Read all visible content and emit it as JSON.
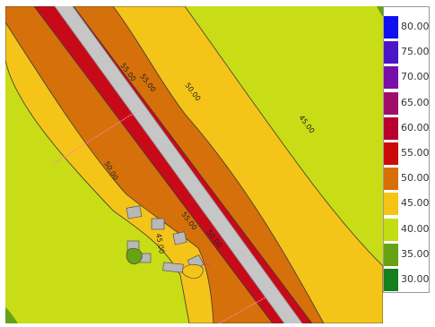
{
  "legend": {
    "entries": [
      {
        "label": "80.00",
        "color": "#1010f0"
      },
      {
        "label": "75.00",
        "color": "#4a16c8"
      },
      {
        "label": "70.00",
        "color": "#7a0ea8"
      },
      {
        "label": "65.00",
        "color": "#a00e6c"
      },
      {
        "label": "60.00",
        "color": "#b8002e"
      },
      {
        "label": "55.00",
        "color": "#cc0a0a"
      },
      {
        "label": "50.00",
        "color": "#d86e06"
      },
      {
        "label": "45.00",
        "color": "#f6c514"
      },
      {
        "label": "40.00",
        "color": "#c4dc14"
      },
      {
        "label": "35.00",
        "color": "#66a214"
      },
      {
        "label": "30.00",
        "color": "#14801e"
      }
    ]
  },
  "map": {
    "road_color": "#c6c6c6",
    "contour_labels": {
      "a": "55.00",
      "b": "55.00",
      "c": "50.00",
      "d": "45.00",
      "e": "50.00",
      "f": "45.00",
      "g": "55.00",
      "h": "50.00"
    }
  }
}
